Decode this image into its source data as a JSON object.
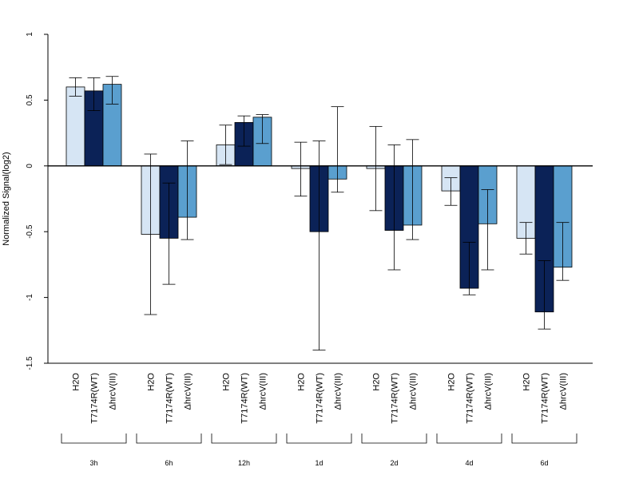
{
  "chart_data": {
    "type": "bar",
    "ylabel": "Normalized Signal(log2)",
    "ylim": [
      -1.5,
      1
    ],
    "yticks": [
      "1",
      "0.5",
      "0",
      "-0.5",
      "-1",
      "-1.5"
    ],
    "ytick_values": [
      1,
      0.5,
      0,
      -0.5,
      -1,
      -1.5
    ],
    "groups": [
      "3h",
      "6h",
      "12h",
      "1d",
      "2d",
      "4d",
      "6d"
    ],
    "series": [
      {
        "name": "H2O",
        "color": "#d6e5f4",
        "values": [
          0.6,
          -0.52,
          0.16,
          -0.02,
          -0.02,
          -0.19,
          -0.55
        ],
        "err_low": [
          0.53,
          -1.13,
          0.01,
          -0.23,
          -0.34,
          -0.3,
          -0.67
        ],
        "err_high": [
          0.67,
          0.09,
          0.31,
          0.18,
          0.3,
          -0.09,
          -0.43
        ]
      },
      {
        "name": "T7174R(WT)",
        "color": "#0b2257",
        "values": [
          0.57,
          -0.55,
          0.33,
          -0.5,
          -0.49,
          -0.93,
          -1.11
        ],
        "err_low": [
          0.42,
          -0.9,
          0.15,
          -1.4,
          -0.79,
          -0.98,
          -1.24
        ],
        "err_high": [
          0.67,
          -0.13,
          0.38,
          0.19,
          0.16,
          -0.58,
          -0.72
        ]
      },
      {
        "name": "ΔhrcV(III)",
        "color": "#5a9fcf",
        "values": [
          0.62,
          -0.39,
          0.37,
          -0.1,
          -0.45,
          -0.44,
          -0.77
        ],
        "err_low": [
          0.47,
          -0.56,
          0.17,
          -0.2,
          -0.56,
          -0.79,
          -0.87
        ],
        "err_high": [
          0.68,
          0.19,
          0.39,
          0.45,
          0.2,
          -0.18,
          -0.43
        ]
      }
    ],
    "grid": false,
    "legend": "none"
  }
}
